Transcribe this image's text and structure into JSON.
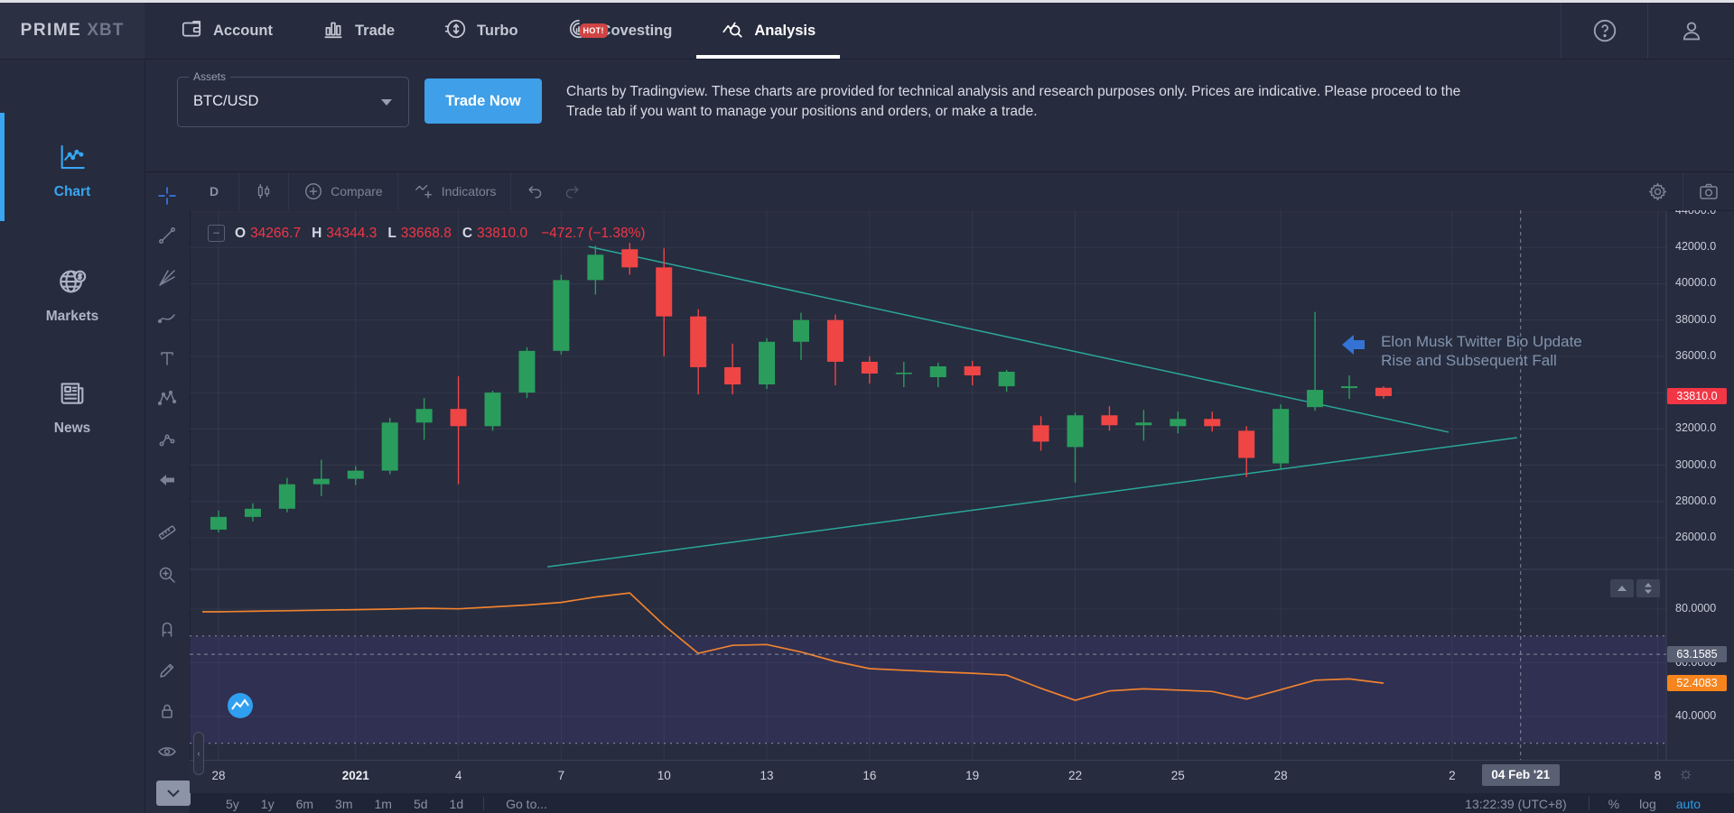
{
  "nav": {
    "brand": {
      "primary": "PRIME",
      "secondary": "XBT"
    },
    "items": [
      {
        "label": "Account"
      },
      {
        "label": "Trade"
      },
      {
        "label": "Turbo"
      },
      {
        "label": "Covesting",
        "badge": "HOT!"
      },
      {
        "label": "Analysis",
        "active": true
      }
    ]
  },
  "sidebar": {
    "items": [
      {
        "label": "Chart",
        "active": true
      },
      {
        "label": "Markets"
      },
      {
        "label": "News"
      }
    ]
  },
  "info_strip": {
    "assets_label": "Assets",
    "asset_value": "BTC/USD",
    "trade_now": "Trade Now",
    "disclaimer": "Charts by Tradingview. These charts are provided for technical analysis and research purposes only. Prices are indicative. Please proceed to the Trade tab if you want to manage your positions and orders, or make a trade."
  },
  "chart_toolbar": {
    "interval": "D",
    "compare": "Compare",
    "indicators": "Indicators"
  },
  "bottom_bar": {
    "ranges": [
      "5y",
      "1y",
      "6m",
      "3m",
      "1m",
      "5d",
      "1d"
    ],
    "goto": "Go to...",
    "clock": "13:22:39 (UTC+8)",
    "percent": "%",
    "log": "log",
    "auto": "auto"
  },
  "colors": {
    "accent_blue": "#38a6f2",
    "button_blue": "#3f9fe8",
    "up_green": "#2a9d5c",
    "down_red": "#ef4545",
    "last_price_bg": "#f23645",
    "trendline": "#2aa89a",
    "rsi_line": "#ef822f",
    "rsi_value_bg": "#f7841c",
    "crosshair_label_bg": "#596073",
    "grid": "rgba(255,255,255,0.055)",
    "rsi_band": "rgba(126,87,255,0.10)"
  },
  "chart_data": {
    "type": "candlestick",
    "symbol": "BTC/USD",
    "interval": "D",
    "legend": {
      "open": 34266.7,
      "high": 34344.3,
      "low": 33668.8,
      "close": 33810.0,
      "change": -472.7,
      "change_pct": -1.38
    },
    "price_scale": {
      "min": 26000,
      "max": 44000
    },
    "price_axis_ticks": [
      {
        "label": "44000.0",
        "price": 44000
      },
      {
        "label": "42000.0",
        "price": 42000
      },
      {
        "label": "40000.0",
        "price": 40000
      },
      {
        "label": "38000.0",
        "price": 38000
      },
      {
        "label": "36000.0",
        "price": 36000
      },
      {
        "label": "32000.0",
        "price": 32000
      },
      {
        "label": "30000.0",
        "price": 30000
      },
      {
        "label": "28000.0",
        "price": 28000
      },
      {
        "label": "26000.0",
        "price": 26000
      }
    ],
    "grid_prices": [
      44000,
      42000,
      40000,
      38000,
      36000,
      34000,
      32000,
      30000,
      28000,
      26000
    ],
    "last_price": {
      "label": "33810.0",
      "price": 33810.0
    },
    "candles": [
      [
        26450,
        27500,
        26300,
        27150
      ],
      [
        27150,
        27900,
        26900,
        27600
      ],
      [
        27600,
        29300,
        27400,
        28950
      ],
      [
        28950,
        30300,
        28300,
        29250
      ],
      [
        29250,
        29950,
        28900,
        29700
      ],
      [
        29700,
        32600,
        29500,
        32350
      ],
      [
        32350,
        33700,
        31400,
        33100
      ],
      [
        33100,
        34900,
        28950,
        32150
      ],
      [
        32150,
        34100,
        31900,
        34000
      ],
      [
        34000,
        36500,
        33700,
        36300
      ],
      [
        36300,
        40500,
        36100,
        40200
      ],
      [
        40200,
        42100,
        39400,
        41600
      ],
      [
        41900,
        42250,
        40500,
        40900
      ],
      [
        40900,
        41950,
        36000,
        38200
      ],
      [
        38200,
        38600,
        33900,
        35400
      ],
      [
        35400,
        36700,
        33900,
        34450
      ],
      [
        34450,
        37000,
        34200,
        36800
      ],
      [
        36800,
        38400,
        35800,
        38000
      ],
      [
        38000,
        38300,
        34400,
        35700
      ],
      [
        35700,
        36000,
        34500,
        35050
      ],
      [
        35050,
        35700,
        34300,
        35100
      ],
      [
        34850,
        35650,
        34300,
        35450
      ],
      [
        35450,
        35750,
        34400,
        34950
      ],
      [
        34350,
        35250,
        34050,
        35150
      ],
      [
        32200,
        32700,
        30800,
        31300
      ],
      [
        31000,
        32900,
        29050,
        32750
      ],
      [
        32750,
        33250,
        31900,
        32200
      ],
      [
        32200,
        33050,
        31350,
        32350
      ],
      [
        32150,
        32950,
        31750,
        32550
      ],
      [
        32550,
        32950,
        31850,
        32150
      ],
      [
        31900,
        32150,
        29350,
        30400
      ],
      [
        30100,
        33350,
        29800,
        33100
      ],
      [
        33200,
        38450,
        33000,
        34150
      ],
      [
        34250,
        34950,
        33650,
        34350
      ],
      [
        34266.7,
        34344.3,
        33668.8,
        33810.0
      ]
    ],
    "time_ticks": [
      {
        "label": "28",
        "i": 0
      },
      {
        "label": "2021",
        "i": 4,
        "bold": true
      },
      {
        "label": "4",
        "i": 7
      },
      {
        "label": "7",
        "i": 10
      },
      {
        "label": "10",
        "i": 13
      },
      {
        "label": "13",
        "i": 16
      },
      {
        "label": "16",
        "i": 19
      },
      {
        "label": "19",
        "i": 22
      },
      {
        "label": "22",
        "i": 25
      },
      {
        "label": "25",
        "i": 28
      },
      {
        "label": "28",
        "i": 31
      },
      {
        "label": "2",
        "i": 36
      },
      {
        "label": "8",
        "i": 42
      }
    ],
    "trendlines": [
      {
        "i1": 10.8,
        "p1": 42050,
        "i2": 35.9,
        "p2": 31820
      },
      {
        "i1": 9.6,
        "p1": 24400,
        "i2": 37.9,
        "p2": 31520
      }
    ],
    "crosshair": {
      "index": 38.0,
      "date_label": "04 Feb '21",
      "rsi_value": 63.1585,
      "rsi_label": "63.1585"
    },
    "rsi": {
      "name": "RSI",
      "values": [
        79,
        79.2,
        79.4,
        79.6,
        79.8,
        80,
        80.3,
        80.1,
        80.8,
        81.5,
        82.5,
        84.5,
        86,
        74,
        63.5,
        66.5,
        66.8,
        64,
        60.5,
        57.8,
        57.2,
        56.6,
        56.1,
        55.4,
        50.5,
        46,
        49.5,
        50.3,
        49.8,
        49.3,
        46.5,
        50,
        53.5,
        54,
        52.4
      ],
      "levels": [
        70,
        30
      ],
      "band": [
        30,
        70
      ],
      "current": {
        "label": "52.4083",
        "value": 52.4083
      },
      "axis_ticks": [
        {
          "label": "80.0000",
          "value": 80
        },
        {
          "label": "40.0000",
          "value": 40
        }
      ],
      "hidden_tick": {
        "label": "60.0000",
        "value": 60
      }
    },
    "annotation": {
      "line1": "Elon Musk Twitter Bio Update",
      "line2": "Rise and Subsequent Fall",
      "index": 32,
      "price": 36500
    }
  }
}
